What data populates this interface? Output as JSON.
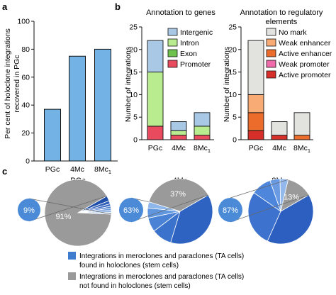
{
  "panel_labels": {
    "a": "a",
    "b": "b",
    "c": "c"
  },
  "colors": {
    "blue_bar": "#72b2e4",
    "intergenic": "#a8c8e6",
    "intron": "#b8ec8e",
    "exon": "#6fc24c",
    "promoter": "#ea4a5e",
    "no_mark": "#e2e2de",
    "weak_enhancer": "#f9ab75",
    "active_enhancer": "#ec6c2c",
    "weak_promoter": "#ee6aa8",
    "active_promoter": "#d62f2a",
    "found": "#3e7cd0",
    "not_found": "#9a9a9a"
  },
  "chart_data": [
    {
      "id": "a",
      "type": "bar",
      "categories": [
        "PGc",
        "4Mc",
        "8Mc"
      ],
      "category_subscripts": [
        "",
        "",
        "1"
      ],
      "values": [
        37,
        75,
        80
      ],
      "ylabel": "Per cent of holoclone integrations recovered in PGc",
      "ylabel_lines": [
        "Per cent of holoclone integrations",
        "recovered in PGc"
      ],
      "ylim": [
        0,
        100
      ],
      "yticks": [
        0,
        20,
        40,
        60,
        80,
        100
      ]
    },
    {
      "id": "b-genes",
      "type": "bar",
      "stacked": true,
      "title": "Annotation to genes",
      "categories": [
        "PGc",
        "4Mc",
        "8Mc"
      ],
      "category_subscripts": [
        "",
        "",
        "1"
      ],
      "ylabel": "Number of integrations",
      "ylim": [
        0,
        25
      ],
      "yticks": [
        0,
        5,
        10,
        15,
        20,
        25
      ],
      "series": [
        {
          "name": "Promoter",
          "values": [
            3,
            1,
            1
          ]
        },
        {
          "name": "Exon",
          "values": [
            0,
            0,
            0
          ]
        },
        {
          "name": "Intron",
          "values": [
            12,
            1,
            2
          ]
        },
        {
          "name": "Intergenic",
          "values": [
            7,
            2,
            3
          ]
        }
      ],
      "legend": [
        "Intergenic",
        "Intron",
        "Exon",
        "Promoter"
      ]
    },
    {
      "id": "b-regulatory",
      "type": "bar",
      "stacked": true,
      "title_lines": [
        "Annotation to regulatory",
        "elements"
      ],
      "categories": [
        "PGc",
        "4Mc",
        "8Mc"
      ],
      "category_subscripts": [
        "",
        "",
        "1"
      ],
      "ylabel": "Number of integrations",
      "ylim": [
        0,
        25
      ],
      "yticks": [
        0,
        5,
        10,
        15,
        20,
        25
      ],
      "series": [
        {
          "name": "Active promoter",
          "values": [
            2,
            1,
            0
          ]
        },
        {
          "name": "Weak promoter",
          "values": [
            0,
            0,
            0
          ]
        },
        {
          "name": "Active enhancer",
          "values": [
            4,
            0,
            1
          ]
        },
        {
          "name": "Weak enhancer",
          "values": [
            4,
            0,
            0
          ]
        },
        {
          "name": "No mark",
          "values": [
            12,
            3,
            5
          ]
        }
      ],
      "legend": [
        "No mark",
        "Weak enhancer",
        "Active enhancer",
        "Weak promoter",
        "Active promoter"
      ]
    },
    {
      "id": "c",
      "type": "pie",
      "pies": [
        {
          "title": "PGc",
          "title_sub": "",
          "found_pct": 9,
          "not_found_pct": 91,
          "found_label": "9%",
          "not_found_label": "91%",
          "found_shades": [
            "#1f4fa8",
            "#2f5fb8",
            "#3e6cc4",
            "#5082d0",
            "#6a96da",
            "#8fb3e6",
            "#bcd2f0"
          ],
          "found_weights": [
            2.5,
            1.5,
            1.2,
            1,
            1,
            1,
            0.8
          ]
        },
        {
          "title": "4Mc",
          "title_sub": "",
          "found_pct": 63,
          "not_found_pct": 37,
          "found_label": "63%",
          "not_found_label": "37%",
          "found_shades": [
            "#2e63c2",
            "#3b72cc",
            "#4a83d6",
            "#5f96de",
            "#8db6ea"
          ],
          "found_weights": [
            38,
            10,
            7,
            5,
            3
          ]
        },
        {
          "title": "8Mc",
          "title_sub": "1",
          "found_pct": 87,
          "not_found_pct": 13,
          "found_label": "87%",
          "not_found_label": "13%",
          "found_shades": [
            "#2c5fc0",
            "#3d73cf",
            "#4d86da",
            "#6a9be2",
            "#93b9ec"
          ],
          "found_weights": [
            40,
            28,
            10,
            5,
            4
          ]
        }
      ]
    }
  ],
  "bottom_legend": [
    {
      "color_key": "found",
      "lines": [
        "Integrations in meroclones and paraclones (TA cells)",
        "found in holoclones (stem cells)"
      ]
    },
    {
      "color_key": "not_found",
      "lines": [
        "Integrations in meroclones and paraclones (TA cells)",
        "not found in holoclones (stem cells)"
      ]
    }
  ]
}
